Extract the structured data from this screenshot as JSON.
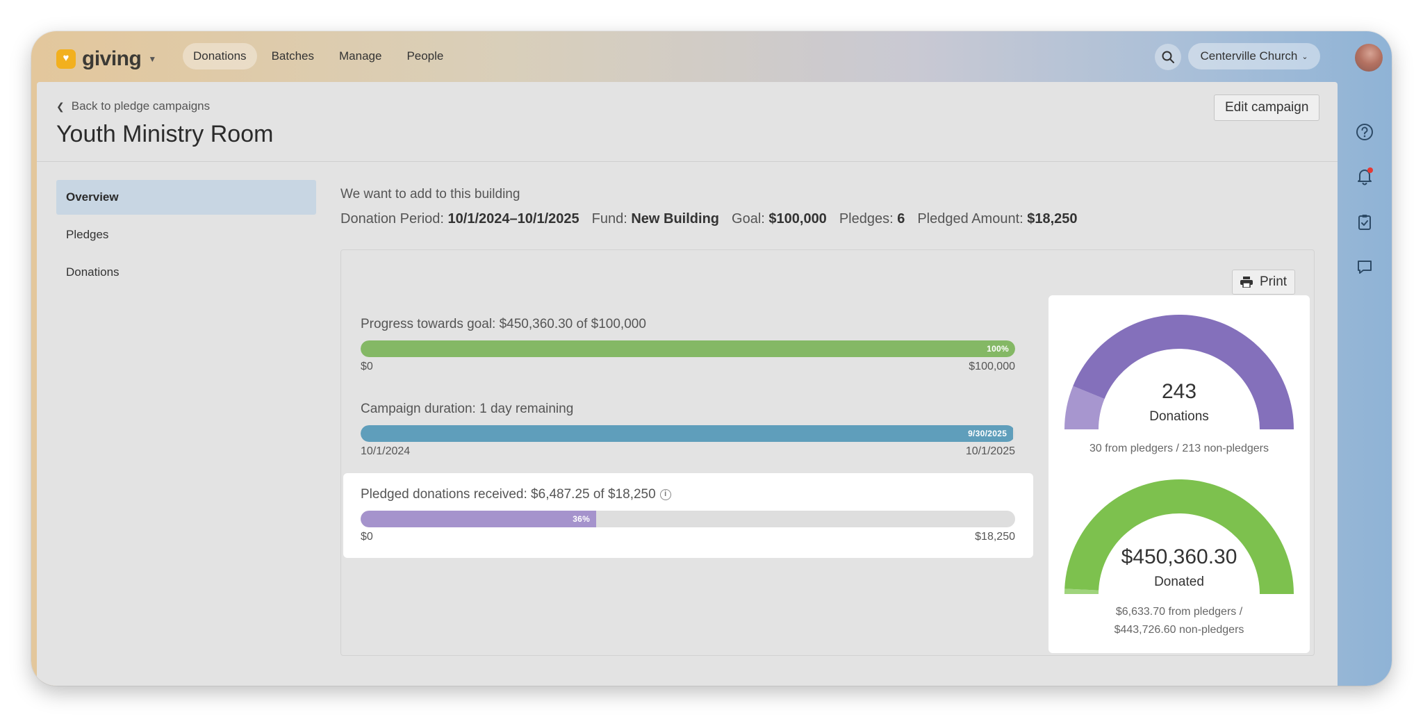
{
  "app": {
    "name": "giving"
  },
  "nav": {
    "tabs": [
      {
        "label": "Donations",
        "active": true
      },
      {
        "label": "Batches"
      },
      {
        "label": "Manage"
      },
      {
        "label": "People"
      }
    ],
    "org": "Centerville Church"
  },
  "page": {
    "back_label": "Back to pledge campaigns",
    "title": "Youth Ministry Room",
    "edit_label": "Edit campaign"
  },
  "sidebar": {
    "items": [
      {
        "label": "Overview",
        "active": true
      },
      {
        "label": "Pledges"
      },
      {
        "label": "Donations"
      }
    ]
  },
  "campaign": {
    "description": "We want to add to this building",
    "period_label": "Donation Period:",
    "period_value": "10/1/2024–10/1/2025",
    "fund_label": "Fund:",
    "fund_value": "New Building",
    "goal_label": "Goal:",
    "goal_value": "$100,000",
    "pledges_label": "Pledges:",
    "pledges_value": "6",
    "pledged_label": "Pledged Amount:",
    "pledged_value": "$18,250"
  },
  "print_label": "Print",
  "progress": {
    "goal": {
      "label": "Progress towards goal: $450,360.30 of $100,000",
      "percent": 100,
      "fill_label": "100%",
      "min": "$0",
      "max": "$100,000",
      "color": "#84b865"
    },
    "duration": {
      "label": "Campaign duration: 1 day remaining",
      "percent": 99.7,
      "fill_label": "9/30/2025",
      "min": "10/1/2024",
      "max": "10/1/2025",
      "color": "#5f9ebb"
    },
    "pledged": {
      "label": "Pledged donations received: $6,487.25 of $18,250",
      "percent": 36,
      "fill_label": "36%",
      "min": "$0",
      "max": "$18,250",
      "color": "#a593cc"
    }
  },
  "gauges": {
    "donations": {
      "value": "243",
      "unit": "Donations",
      "caption": "30 from pledgers / 213 non-pledgers",
      "fraction_pledgers": 0.1235,
      "color_main": "#8470bb",
      "color_pledgers": "#a796cf"
    },
    "donated": {
      "value": "$450,360.30",
      "unit": "Donated",
      "caption_line1": "$6,633.70 from pledgers /",
      "caption_line2": "$443,726.60 non-pledgers",
      "fraction_pledgers": 0.0147,
      "color_main": "#7dc14e",
      "color_pledgers": "#9fd47c"
    }
  }
}
